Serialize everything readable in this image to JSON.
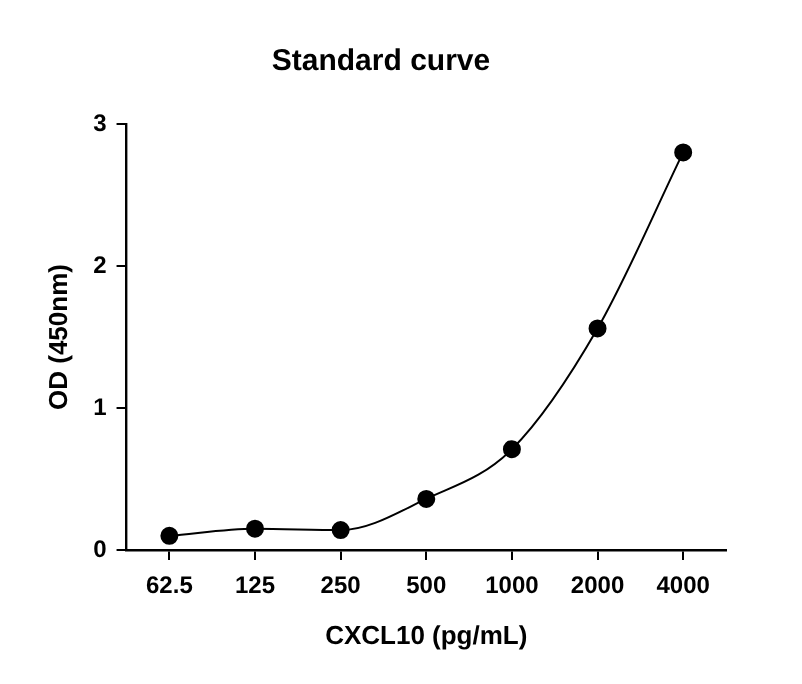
{
  "chart_data": {
    "type": "line",
    "title": "Standard curve",
    "xlabel": "CXCL10 (pg/mL)",
    "ylabel": "OD (450nm)",
    "categories": [
      "62.5",
      "125",
      "250",
      "500",
      "1000",
      "2000",
      "4000"
    ],
    "series": [
      {
        "color": "#000000",
        "values": [
          0.1,
          0.15,
          0.14,
          0.36,
          0.71,
          1.56,
          2.8
        ]
      }
    ],
    "ylim": [
      0,
      3
    ],
    "yticks": [
      0,
      1,
      2,
      3
    ],
    "grid": false,
    "legend": false,
    "marker": "circle",
    "line_style": "solid"
  }
}
